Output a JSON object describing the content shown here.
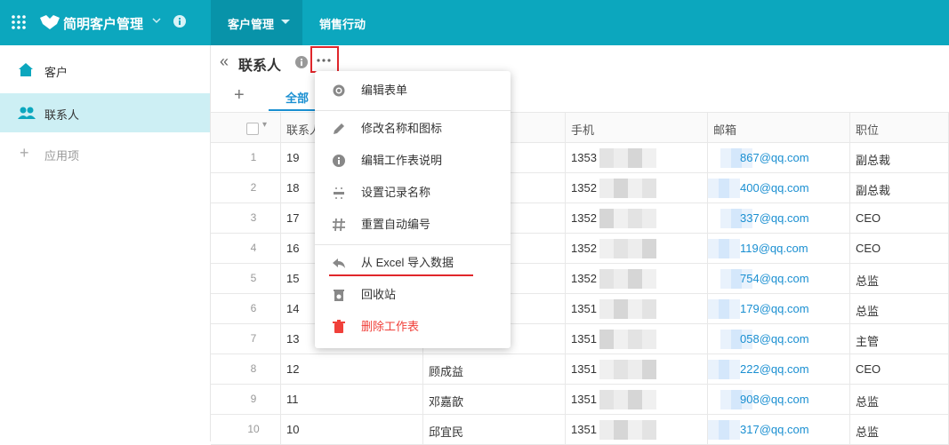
{
  "top_bar": {
    "app_name": "简明客户管理",
    "tabs": [
      "客户管理",
      "销售行动"
    ]
  },
  "sidebar": {
    "items": [
      "客户",
      "联系人",
      "应用项"
    ]
  },
  "header": {
    "title": "联系人",
    "tabs": [
      "全部"
    ]
  },
  "table": {
    "columns": [
      "联系人",
      "手机",
      "邮箱",
      "职位"
    ],
    "rows": [
      [
        1,
        19,
        null,
        "1353",
        "867@qq.com",
        "副总裁"
      ],
      [
        2,
        18,
        null,
        "1352",
        "400@qq.com",
        "副总裁"
      ],
      [
        3,
        17,
        null,
        "1352",
        "337@qq.com",
        "CEO"
      ],
      [
        4,
        16,
        null,
        "1352",
        "119@qq.com",
        "CEO"
      ],
      [
        5,
        15,
        null,
        "1352",
        "754@qq.com",
        "总监"
      ],
      [
        6,
        14,
        null,
        "1351",
        "179@qq.com",
        "总监"
      ],
      [
        7,
        13,
        null,
        "1351",
        "058@qq.com",
        "主管"
      ],
      [
        8,
        12,
        "顾成益",
        "1351",
        "222@qq.com",
        "CEO"
      ],
      [
        9,
        11,
        "邓嘉歆",
        "1351",
        "908@qq.com",
        "总监"
      ],
      [
        10,
        10,
        "邱宜民",
        "1351",
        "317@qq.com",
        "总监"
      ]
    ]
  },
  "menu": {
    "items": [
      "编辑表单",
      "修改名称和图标",
      "编辑工作表说明",
      "设置记录名称",
      "重置自动编号",
      "从 Excel 导入数据",
      "回收站",
      "删除工作表"
    ]
  }
}
